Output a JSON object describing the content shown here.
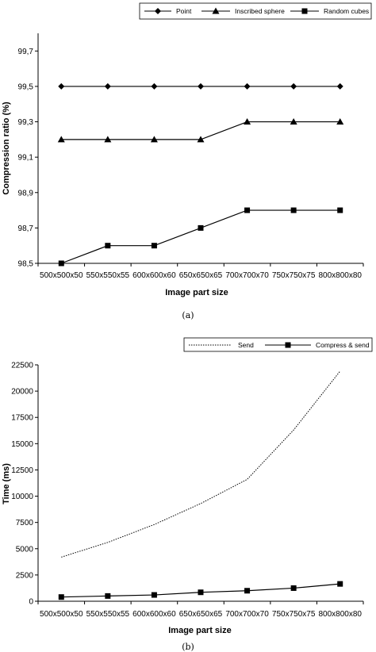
{
  "chart_data": [
    {
      "type": "line",
      "caption": "(a)",
      "xlabel": "Image part size",
      "ylabel": "Compression ratio (%)",
      "categories": [
        "500x500x50",
        "550x550x55",
        "600x600x60",
        "650x650x65",
        "700x700x70",
        "750x750x75",
        "800x800x80"
      ],
      "ylim": [
        98.5,
        99.8
      ],
      "yticks": [
        "98,5",
        "98,7",
        "98,9",
        "99,1",
        "99,3",
        "99,5",
        "99,7"
      ],
      "legend_position": "top",
      "grid": false,
      "series": [
        {
          "name": "Point",
          "marker": "diamond",
          "values": [
            99.5,
            99.5,
            99.5,
            99.5,
            99.5,
            99.5,
            99.5
          ]
        },
        {
          "name": "Inscribed sphere",
          "marker": "triangle",
          "values": [
            99.2,
            99.2,
            99.2,
            99.2,
            99.3,
            99.3,
            99.3
          ]
        },
        {
          "name": "Random cubes",
          "marker": "square",
          "values": [
            98.5,
            98.6,
            98.6,
            98.7,
            98.8,
            98.8,
            98.8
          ]
        }
      ]
    },
    {
      "type": "line",
      "caption": "(b)",
      "xlabel": "Image part size",
      "ylabel": "Time (ms)",
      "categories": [
        "500x500x50",
        "550x550x55",
        "600x600x60",
        "650x650x65",
        "700x700x70",
        "750x750x75",
        "800x800x80"
      ],
      "ylim": [
        0,
        22500
      ],
      "yticks": [
        "0",
        "2500",
        "5000",
        "7500",
        "10000",
        "12500",
        "15000",
        "17500",
        "20000",
        "22500"
      ],
      "legend_position": "top",
      "grid": false,
      "series": [
        {
          "name": "Send",
          "style": "dotted",
          "marker": "none",
          "values": [
            4200,
            5600,
            7300,
            9300,
            11600,
            16300,
            21900
          ]
        },
        {
          "name": "Compress & send",
          "style": "solid",
          "marker": "square",
          "values": [
            400,
            500,
            600,
            850,
            1000,
            1250,
            1650
          ]
        }
      ]
    }
  ]
}
